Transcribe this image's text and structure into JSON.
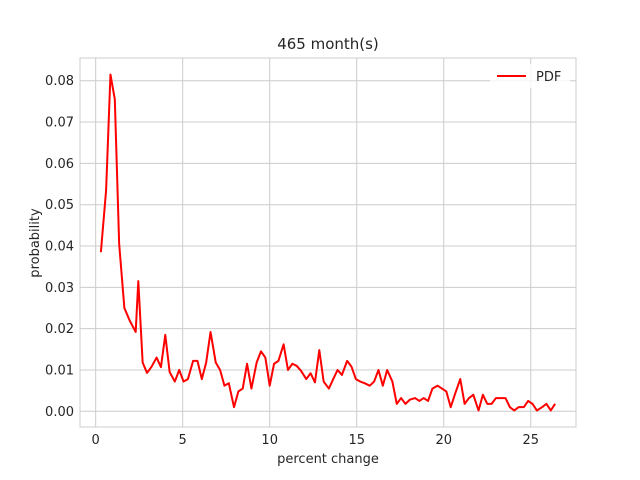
{
  "chart_data": {
    "type": "line",
    "title": "465 month(s)",
    "xlabel": "percent change",
    "ylabel": "probability",
    "xlim": [
      -0.9,
      27.6
    ],
    "ylim": [
      -0.0038,
      0.0855
    ],
    "x_ticks": [
      0,
      5,
      10,
      15,
      20,
      25
    ],
    "y_ticks": [
      0.0,
      0.01,
      0.02,
      0.03,
      0.04,
      0.05,
      0.06,
      0.07,
      0.08
    ],
    "x_tick_labels": [
      "0",
      "5",
      "10",
      "15",
      "20",
      "25"
    ],
    "y_tick_labels": [
      "0.00",
      "0.01",
      "0.02",
      "0.03",
      "0.04",
      "0.05",
      "0.06",
      "0.07",
      "0.08"
    ],
    "grid": true,
    "legend_position": "top-right",
    "series": [
      {
        "name": "PDF",
        "color": "#ff0000",
        "x": [
          0.3,
          0.6,
          0.85,
          1.1,
          1.35,
          1.65,
          1.95,
          2.3,
          2.45,
          2.7,
          2.95,
          3.2,
          3.5,
          3.75,
          4.0,
          4.25,
          4.55,
          4.8,
          5.05,
          5.3,
          5.6,
          5.85,
          6.1,
          6.35,
          6.6,
          6.9,
          7.15,
          7.4,
          7.65,
          7.95,
          8.2,
          8.45,
          8.7,
          8.95,
          9.25,
          9.5,
          9.75,
          10.0,
          10.25,
          10.5,
          10.8,
          11.05,
          11.3,
          11.55,
          11.8,
          12.1,
          12.35,
          12.6,
          12.85,
          13.1,
          13.4,
          13.65,
          13.9,
          14.15,
          14.45,
          14.7,
          14.95,
          15.2,
          15.45,
          15.75,
          16.0,
          16.25,
          16.5,
          16.75,
          17.05,
          17.3,
          17.55,
          17.8,
          18.05,
          18.35,
          18.6,
          18.85,
          19.1,
          19.35,
          19.65,
          19.9,
          20.15,
          20.4,
          20.65,
          20.95,
          21.2,
          21.45,
          21.7,
          22.0,
          22.25,
          22.5,
          22.75,
          23.0,
          23.3,
          23.55,
          23.8,
          24.05,
          24.3,
          24.6,
          24.85,
          25.1,
          25.35,
          25.65,
          25.9,
          26.15,
          26.4
        ],
        "y": [
          0.0385,
          0.0535,
          0.0815,
          0.0755,
          0.0405,
          0.025,
          0.022,
          0.0192,
          0.0315,
          0.0118,
          0.0093,
          0.0107,
          0.013,
          0.0107,
          0.0185,
          0.0095,
          0.0072,
          0.01,
          0.0072,
          0.0078,
          0.0122,
          0.0122,
          0.0078,
          0.0118,
          0.0192,
          0.0118,
          0.01,
          0.0062,
          0.0068,
          0.001,
          0.0048,
          0.0055,
          0.0115,
          0.0055,
          0.0118,
          0.0145,
          0.013,
          0.0062,
          0.0115,
          0.0122,
          0.0162,
          0.01,
          0.0115,
          0.011,
          0.0098,
          0.0078,
          0.0092,
          0.007,
          0.0148,
          0.0072,
          0.0055,
          0.0078,
          0.01,
          0.0088,
          0.0122,
          0.0108,
          0.0078,
          0.0072,
          0.0068,
          0.0062,
          0.0072,
          0.01,
          0.0062,
          0.01,
          0.0072,
          0.0018,
          0.0032,
          0.0018,
          0.0028,
          0.0032,
          0.0025,
          0.0032,
          0.0025,
          0.0055,
          0.0062,
          0.0055,
          0.0048,
          0.001,
          0.0042,
          0.0078,
          0.0018,
          0.0032,
          0.004,
          0.0002,
          0.004,
          0.0018,
          0.0018,
          0.0032,
          0.0032,
          0.0032,
          0.001,
          0.0002,
          0.001,
          0.001,
          0.0025,
          0.0018,
          0.0002,
          0.001,
          0.0018,
          0.0002,
          0.0018
        ]
      }
    ]
  }
}
